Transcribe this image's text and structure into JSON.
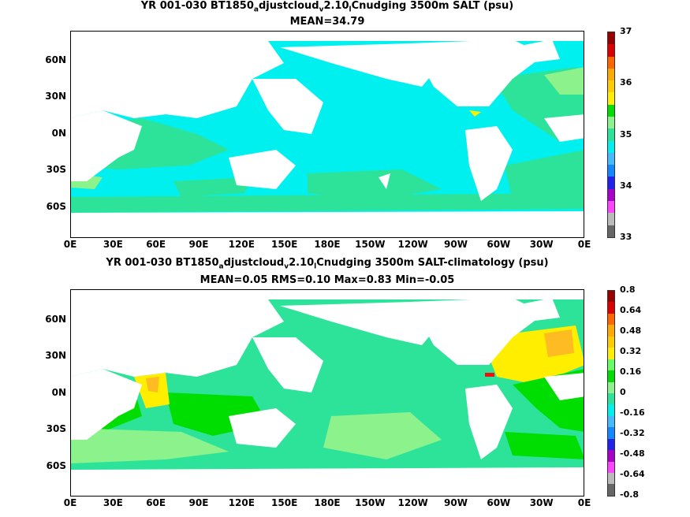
{
  "panel1": {
    "title_prefix": "YR 001-030 BT1850",
    "title_sub1": "a",
    "title_mid1": "djustcloud",
    "title_sub2": "v",
    "title_mid2": "2.10",
    "title_sub3": "l",
    "title_suffix": "Cnudging 3500m SALT (psu)",
    "stats": "MEAN=34.79",
    "colorbar_labels": [
      "37",
      "36",
      "35",
      "34",
      "33"
    ]
  },
  "panel2": {
    "title_prefix": "YR 001-030 BT1850",
    "title_sub1": "a",
    "title_mid1": "djustcloud",
    "title_sub2": "v",
    "title_mid2": "2.10",
    "title_sub3": "l",
    "title_suffix": "Cnudging 3500m SALT-climatology (psu)",
    "stats": "MEAN=0.05   RMS=0.10   Max=0.83   Min=-0.05",
    "colorbar_labels": [
      "0.8",
      "0.64",
      "0.48",
      "0.32",
      "0.16",
      "0",
      "-0.16",
      "-0.32",
      "-0.48",
      "-0.64",
      "-0.8"
    ]
  },
  "lat_labels": [
    "60N",
    "30N",
    "0N",
    "30S",
    "60S"
  ],
  "lon_labels": [
    "0E",
    "30E",
    "60E",
    "90E",
    "120E",
    "150E",
    "180E",
    "150W",
    "120W",
    "90W",
    "60W",
    "30W",
    "0E"
  ],
  "colors": {
    "land": "#ffffff",
    "cyan": "#00f0f0",
    "teal_green": "#2de39a",
    "light_green": "#8cf28c",
    "green": "#00dd00",
    "yellow": "#ffee00",
    "orange": "#ffbb22",
    "red": "#ee1111"
  },
  "colorbar1_colors": [
    "#666666",
    "#bbbbbb",
    "#ff44ff",
    "#aa00cc",
    "#2222ee",
    "#1188ff",
    "#44bbff",
    "#00f0f0",
    "#2de39a",
    "#8cf28c",
    "#00dd00",
    "#ffee00",
    "#ffcc00",
    "#ffaa00",
    "#ff6600",
    "#dd0000",
    "#990000"
  ],
  "colorbar2_colors": [
    "#666666",
    "#bbbbbb",
    "#ff44ff",
    "#aa00cc",
    "#2222ee",
    "#1188ff",
    "#44bbff",
    "#00f0f0",
    "#2de39a",
    "#8cf28c",
    "#00dd00",
    "#66ff66",
    "#ffee00",
    "#ffcc00",
    "#ffaa00",
    "#ff6600",
    "#dd0000",
    "#990000"
  ]
}
